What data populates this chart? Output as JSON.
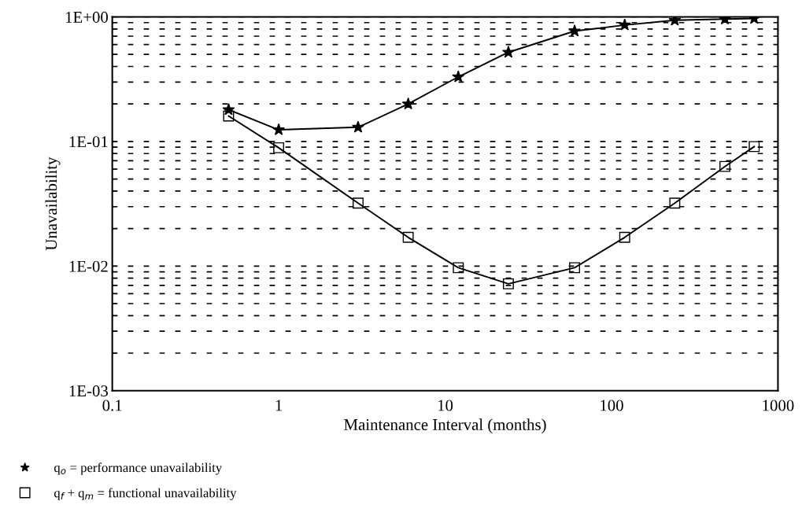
{
  "chart_data": {
    "type": "line",
    "xlabel": "Maintenance Interval (months)",
    "ylabel": "Unavailability",
    "log": "xy",
    "grid": "y",
    "legend": "bottom left",
    "line_style": "solid",
    "xlim": [
      0.1,
      1000
    ],
    "xticks": [
      0.1,
      1,
      10,
      100,
      1000
    ],
    "ylim": [
      0.001,
      1
    ],
    "yticks": [
      {
        "value": 0.001,
        "label": "1E-03"
      },
      {
        "value": 0.002,
        "label": null
      },
      {
        "value": 0.003,
        "label": null
      },
      {
        "value": 0.004,
        "label": null
      },
      {
        "value": 0.005,
        "label": null
      },
      {
        "value": 0.006,
        "label": null
      },
      {
        "value": 0.007,
        "label": null
      },
      {
        "value": 0.008,
        "label": null
      },
      {
        "value": 0.009,
        "label": null
      },
      {
        "value": 0.01,
        "label": "1E-02"
      },
      {
        "value": 0.02,
        "label": null
      },
      {
        "value": 0.03,
        "label": null
      },
      {
        "value": 0.04,
        "label": null
      },
      {
        "value": 0.05,
        "label": null
      },
      {
        "value": 0.06,
        "label": null
      },
      {
        "value": 0.07,
        "label": null
      },
      {
        "value": 0.08,
        "label": null
      },
      {
        "value": 0.09,
        "label": null
      },
      {
        "value": 0.1,
        "label": "1E-01"
      },
      {
        "value": 0.2,
        "label": null
      },
      {
        "value": 0.3,
        "label": null
      },
      {
        "value": 0.4,
        "label": null
      },
      {
        "value": 0.5,
        "label": null
      },
      {
        "value": 0.6,
        "label": null
      },
      {
        "value": 0.7,
        "label": null
      },
      {
        "value": 0.8,
        "label": null
      },
      {
        "value": 0.9,
        "label": null
      },
      {
        "value": 1,
        "label": "1E+00"
      }
    ],
    "x": [
      0.5,
      1,
      3,
      6,
      12,
      24,
      60,
      120,
      240,
      480,
      720
    ],
    "series": [
      {
        "name": "q$_{o}$ = performance unavailability",
        "color": "#000000",
        "marker": "star",
        "values": [
          0.18,
          0.124,
          0.13,
          0.2,
          0.33,
          0.52,
          0.77,
          0.86,
          0.94,
          0.96,
          0.97
        ]
      },
      {
        "name": "q$_{f}$ + q$_{m}$ = functional unavailability",
        "color": "#000000",
        "marker": "square",
        "values": [
          0.16,
          0.089,
          0.032,
          0.017,
          0.0097,
          0.0072,
          0.0097,
          0.017,
          0.032,
          0.063,
          0.091
        ]
      }
    ]
  }
}
